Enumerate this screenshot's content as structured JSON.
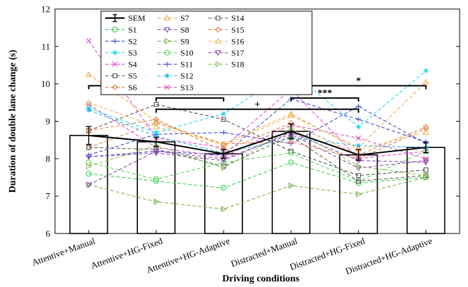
{
  "chart_data": {
    "type": "bar",
    "xlabel": "Driving conditions",
    "ylabel": "Duration of double lane change (s)",
    "ylim": [
      6,
      12
    ],
    "yticks": [
      6,
      7,
      8,
      9,
      10,
      11,
      12
    ],
    "categories": [
      "Attentive+Manual",
      "Attentive+HG-Fixed",
      "Attentive+HG-Adaptive",
      "Distracted+Manual",
      "Distracted+HG-Fixed",
      "Distracted+HG-Adaptive"
    ],
    "mean": {
      "name": "",
      "values": [
        8.62,
        8.45,
        8.13,
        8.73,
        8.1,
        8.3
      ]
    },
    "sem": {
      "name": "SEM",
      "values": [
        0.24,
        0.12,
        0.12,
        0.2,
        0.14,
        0.14
      ],
      "color": "#000000"
    },
    "series": [
      {
        "name": "S1",
        "values": [
          7.6,
          7.4,
          7.22,
          7.9,
          7.35,
          7.5
        ],
        "color": "#2ecc40",
        "marker": "circle"
      },
      {
        "name": "S2",
        "values": [
          8.1,
          8.65,
          8.7,
          8.4,
          9.4,
          8.4
        ],
        "color": "#2c35d8",
        "marker": "plus"
      },
      {
        "name": "S3",
        "values": [
          9.35,
          8.7,
          9.2,
          10.33,
          8.85,
          10.35
        ],
        "color": "#16d6ee",
        "marker": "star"
      },
      {
        "name": "S4",
        "values": [
          11.15,
          8.55,
          8.3,
          9.85,
          8.0,
          8.2
        ],
        "color": "#e93ad8",
        "marker": "x"
      },
      {
        "name": "S5",
        "values": [
          8.75,
          9.45,
          9.05,
          8.2,
          7.55,
          7.7
        ],
        "color": "#444444",
        "marker": "square"
      },
      {
        "name": "S6",
        "values": [
          8.3,
          8.95,
          8.4,
          8.45,
          8.0,
          8.8
        ],
        "color": "#e8743b",
        "marker": "diamond"
      },
      {
        "name": "S7",
        "values": [
          10.25,
          9.0,
          8.35,
          9.15,
          8.3,
          10.05
        ],
        "color": "#f0a23a",
        "marker": "triangle-up"
      },
      {
        "name": "S8",
        "values": [
          8.05,
          8.15,
          7.95,
          8.7,
          7.95,
          7.9
        ],
        "color": "#7a3fa8",
        "marker": "triangle-down"
      },
      {
        "name": "S9",
        "values": [
          7.3,
          6.85,
          6.65,
          7.28,
          7.05,
          7.5
        ],
        "color": "#6fa83a",
        "marker": "triangle-right"
      },
      {
        "name": "S10",
        "values": [
          7.9,
          7.45,
          7.9,
          8.15,
          7.4,
          8.2
        ],
        "color": "#4fd34a",
        "marker": "circle"
      },
      {
        "name": "S11",
        "values": [
          8.05,
          8.2,
          8.1,
          9.6,
          9.05,
          8.45
        ],
        "color": "#3a3ad0",
        "marker": "plus"
      },
      {
        "name": "S12",
        "values": [
          9.3,
          8.6,
          8.15,
          8.55,
          8.35,
          8.3
        ],
        "color": "#19b5e8",
        "marker": "star"
      },
      {
        "name": "S13",
        "values": [
          9.45,
          8.3,
          8.05,
          8.9,
          8.55,
          8.0
        ],
        "color": "#d83fb8",
        "marker": "x"
      },
      {
        "name": "S14",
        "values": [
          8.3,
          8.25,
          7.8,
          8.6,
          7.4,
          7.55
        ],
        "color": "#555555",
        "marker": "square"
      },
      {
        "name": "S15",
        "values": [
          8.75,
          9.05,
          8.2,
          8.95,
          8.1,
          8.85
        ],
        "color": "#e07a3a",
        "marker": "diamond"
      },
      {
        "name": "S16",
        "values": [
          9.5,
          8.85,
          8.4,
          9.2,
          8.25,
          8.7
        ],
        "color": "#efb34f",
        "marker": "triangle-up"
      },
      {
        "name": "S17",
        "values": [
          7.3,
          8.2,
          8.0,
          8.65,
          7.75,
          7.95
        ],
        "color": "#8a3aa0",
        "marker": "triangle-down"
      },
      {
        "name": "S18",
        "values": [
          7.8,
          8.35,
          7.75,
          8.8,
          7.8,
          7.55
        ],
        "color": "#82b84a",
        "marker": "triangle-right"
      }
    ],
    "significance": [
      {
        "from": 0,
        "to": 2,
        "y": 9.95,
        "label": "+"
      },
      {
        "from": 1,
        "to": 2,
        "y": 9.62,
        "label": "*"
      },
      {
        "from": 3,
        "to": 5,
        "y": 9.95,
        "label": "*"
      },
      {
        "from": 3,
        "to": 4,
        "y": 9.62,
        "label": "***"
      },
      {
        "from": 1,
        "to": 4,
        "y": 9.32,
        "label": "+"
      }
    ]
  }
}
